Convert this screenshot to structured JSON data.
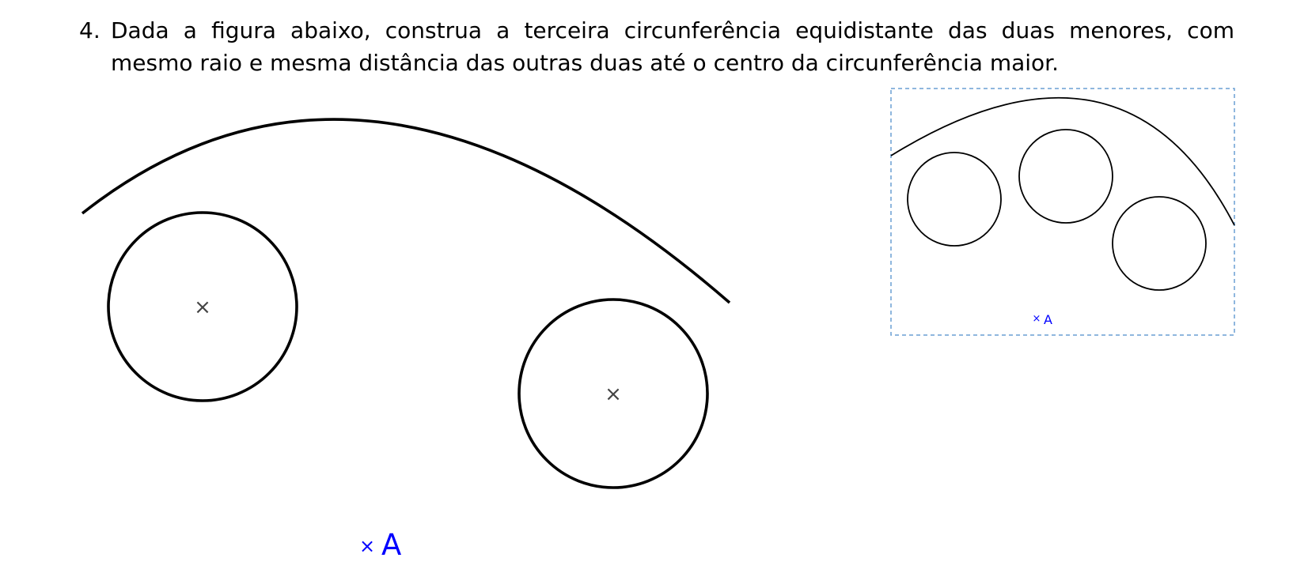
{
  "question": {
    "number": "4.",
    "text": "Dada a figura abaixo, construa a terceira circunferência equidistante das duas menores, com mesmo raio e mesma distância das outras duas até o centro da circunferência maior."
  },
  "figure": {
    "center_marker": "×",
    "point_marker": "×",
    "point_label": "A",
    "point_color": "#0000ff"
  },
  "thumbnail": {
    "point_marker": "×",
    "point_label": "A",
    "frame_color": "#6a9fd4"
  }
}
